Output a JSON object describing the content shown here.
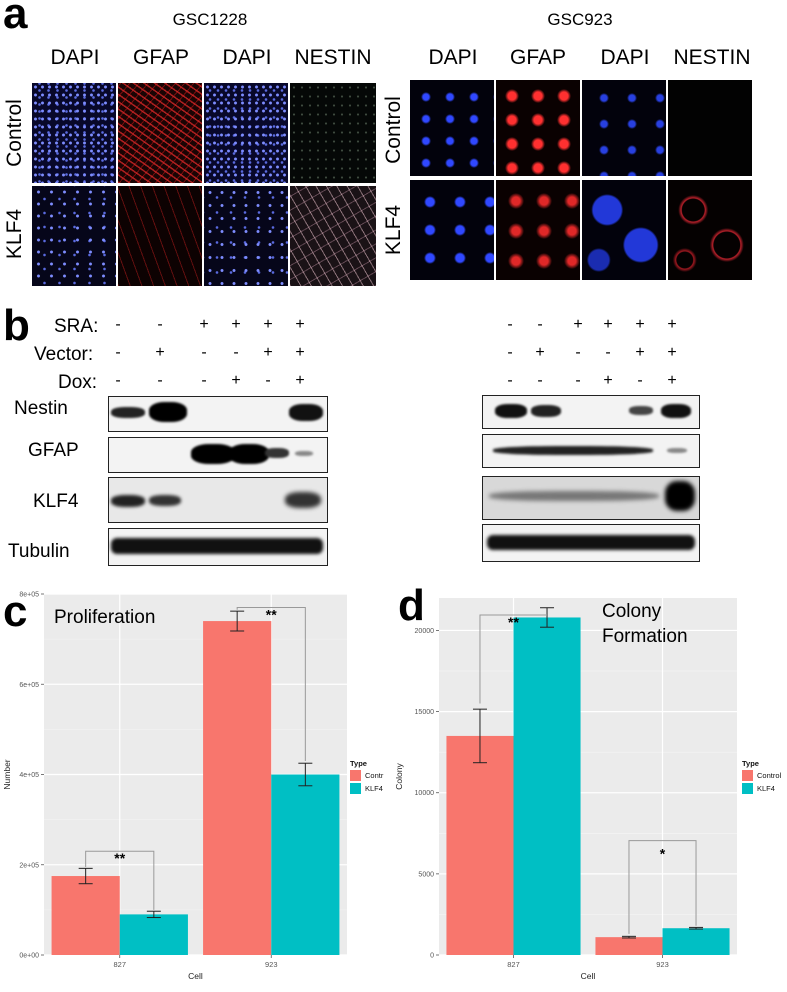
{
  "panel_a": {
    "letter": "a",
    "groups": [
      {
        "title": "GSC1228",
        "columns": [
          "DAPI",
          "GFAP",
          "DAPI",
          "NESTIN"
        ]
      },
      {
        "title": "GSC923",
        "columns": [
          "DAPI",
          "GFAP",
          "DAPI",
          "NESTIN"
        ]
      }
    ],
    "rows": [
      "Control",
      "KLF4"
    ]
  },
  "panel_b": {
    "letter": "b",
    "conditions": [
      {
        "label": "SRA:",
        "signs": [
          "-",
          "-",
          "+",
          "+",
          "+",
          "+"
        ]
      },
      {
        "label": "Vector:",
        "signs": [
          "-",
          "+",
          "-",
          "-",
          "+",
          "+"
        ]
      },
      {
        "label": "Dox:",
        "signs": [
          "-",
          "-",
          "-",
          "+",
          "-",
          "+"
        ]
      }
    ],
    "blots": [
      "Nestin",
      "GFAP",
      "KLF4",
      "Tubulin"
    ]
  },
  "panel_c": {
    "letter": "c",
    "title": "Proliferation",
    "significance": [
      "**",
      "**"
    ],
    "legend_title": "Type",
    "legend": [
      "Contr",
      "KLF4"
    ]
  },
  "panel_d": {
    "letter": "d",
    "title_line1": "Colony",
    "title_line2": "Formation",
    "significance": [
      "**",
      "*"
    ],
    "legend_title": "Type",
    "legend": [
      "Control",
      "KLF4"
    ]
  },
  "colors": {
    "control": "#F8766D",
    "klf4": "#00BFC4",
    "panel_bg": "#EBEBEB"
  },
  "chart_data": [
    {
      "type": "bar",
      "title": "Proliferation",
      "categories": [
        "827",
        "923"
      ],
      "xlabel": "Cell",
      "ylabel": "Number",
      "ylim": [
        0,
        800000
      ],
      "yticks": [
        0,
        200000,
        400000,
        600000,
        800000
      ],
      "ytick_labels": [
        "0e+00",
        "2e+05",
        "4e+05",
        "6e+05",
        "8e+05"
      ],
      "series": [
        {
          "name": "Contr",
          "values": [
            175000,
            740000
          ],
          "errors": [
            17000,
            22000
          ]
        },
        {
          "name": "KLF4",
          "values": [
            90000,
            400000
          ],
          "errors": [
            7000,
            25000
          ]
        }
      ],
      "grid": true,
      "legend_position": "right"
    },
    {
      "type": "bar",
      "title": "Colony Formation",
      "categories": [
        "827",
        "923"
      ],
      "xlabel": "Cell",
      "ylabel": "Colony",
      "ylim": [
        0,
        22000
      ],
      "yticks": [
        0,
        5000,
        10000,
        15000,
        20000
      ],
      "ytick_labels": [
        "0",
        "5000",
        "10000",
        "15000",
        "20000"
      ],
      "series": [
        {
          "name": "Control",
          "values": [
            13500,
            1100
          ],
          "errors": [
            1650,
            50
          ]
        },
        {
          "name": "KLF4",
          "values": [
            20800,
            1650
          ],
          "errors": [
            600,
            50
          ]
        }
      ],
      "grid": true,
      "legend_position": "right"
    }
  ]
}
